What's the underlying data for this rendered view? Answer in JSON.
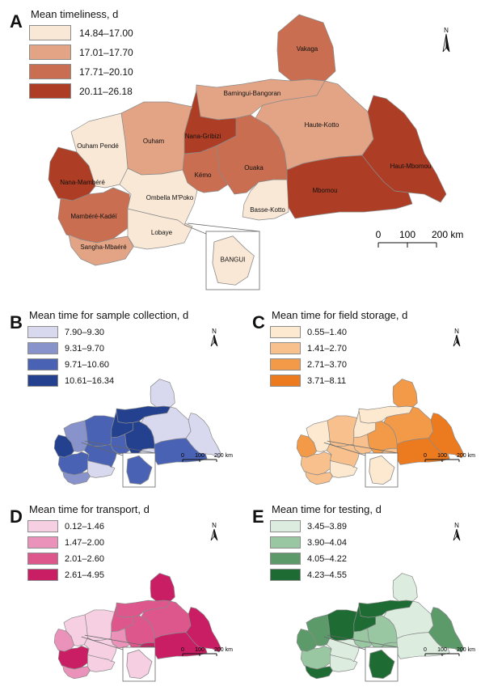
{
  "north_label": "N",
  "scale": {
    "ticks": [
      "0",
      "100",
      "200 km"
    ]
  },
  "inset_label": "BANGUI",
  "panels": [
    {
      "letter": "A",
      "title": "Mean timeliness, d",
      "legend": [
        {
          "label": "14.84–17.00",
          "color": "#fae8d6"
        },
        {
          "label": "17.01–17.70",
          "color": "#e3a486"
        },
        {
          "label": "17.71–20.10",
          "color": "#c96e50"
        },
        {
          "label": "20.11–26.18",
          "color": "#ad3d24"
        }
      ],
      "bangui_class": 0,
      "regions": {
        "vakaga": 2,
        "bamingui": 1,
        "haute_kotto": 1,
        "haut_mbomou": 3,
        "mbomou": 3,
        "basse_kotto": 0,
        "ouaka": 2,
        "kemo": 2,
        "nana_gribizi": 3,
        "ouham": 1,
        "ouham_pende": 0,
        "nana_mambere": 3,
        "mambere_kadei": 2,
        "sangha": 1,
        "lobaye": 0,
        "ombella": 0
      },
      "region_names": {
        "vakaga": "Vakaga",
        "bamingui": "Bamingui-Bangoran",
        "haute_kotto": "Haute-Kotto",
        "haut_mbomou": "Haut-Mbomou",
        "mbomou": "Mbomou",
        "basse_kotto": "Basse-Kotto",
        "ouaka": "Ouaka",
        "kemo": "Kémo",
        "nana_gribizi": "Nana-Gribizi",
        "ouham": "Ouham",
        "ouham_pende": "Ouham Pendé",
        "nana_mambere": "Nana-Mambéré",
        "mambere_kadei": "Mambéré-Kadéï",
        "sangha": "Sangha-Mbaéré",
        "lobaye": "Lobaye",
        "ombella": "Ombella M'Poko"
      }
    },
    {
      "letter": "B",
      "title": "Mean time for sample collection, d",
      "legend": [
        {
          "label": "7.90–9.30",
          "color": "#d8d9ee"
        },
        {
          "label": "9.31–9.70",
          "color": "#8893cc"
        },
        {
          "label": "9.71–10.60",
          "color": "#4a62b3"
        },
        {
          "label": "10.61–16.34",
          "color": "#23418f"
        }
      ],
      "bangui_class": 2,
      "regions": {
        "vakaga": 0,
        "bamingui": 3,
        "haute_kotto": 0,
        "haut_mbomou": 0,
        "mbomou": 2,
        "basse_kotto": 0,
        "ouaka": 3,
        "kemo": 2,
        "nana_gribizi": 3,
        "ouham": 2,
        "ouham_pende": 1,
        "nana_mambere": 3,
        "mambere_kadei": 2,
        "sangha": 1,
        "lobaye": 0,
        "ombella": 2
      }
    },
    {
      "letter": "C",
      "title": "Mean time for field storage, d",
      "legend": [
        {
          "label": "0.55–1.40",
          "color": "#fde9cf"
        },
        {
          "label": "1.41–2.70",
          "color": "#f7c08c"
        },
        {
          "label": "2.71–3.70",
          "color": "#f29a48"
        },
        {
          "label": "3.71–8.11",
          "color": "#ec7a1f"
        }
      ],
      "bangui_class": 0,
      "regions": {
        "vakaga": 2,
        "bamingui": 0,
        "haute_kotto": 2,
        "haut_mbomou": 3,
        "mbomou": 3,
        "basse_kotto": 1,
        "ouaka": 2,
        "kemo": 1,
        "nana_gribizi": 0,
        "ouham": 1,
        "ouham_pende": 0,
        "nana_mambere": 2,
        "mambere_kadei": 1,
        "sangha": 1,
        "lobaye": 0,
        "ombella": 1
      }
    },
    {
      "letter": "D",
      "title": "Mean time for transport, d",
      "legend": [
        {
          "label": "0.12–1.46",
          "color": "#f7cfe3"
        },
        {
          "label": "1.47–2.00",
          "color": "#ea92b9"
        },
        {
          "label": "2.01–2.60",
          "color": "#dd578d"
        },
        {
          "label": "2.61–4.95",
          "color": "#c91d64"
        }
      ],
      "bangui_class": 0,
      "regions": {
        "vakaga": 3,
        "bamingui": 2,
        "haute_kotto": 2,
        "haut_mbomou": 3,
        "mbomou": 3,
        "basse_kotto": 3,
        "ouaka": 2,
        "kemo": 1,
        "nana_gribizi": 2,
        "ouham": 0,
        "ouham_pende": 0,
        "nana_mambere": 1,
        "mambere_kadei": 3,
        "sangha": 1,
        "lobaye": 0,
        "ombella": 0
      }
    },
    {
      "letter": "E",
      "title": "Mean time for testing, d",
      "legend": [
        {
          "label": "3.45–3.89",
          "color": "#dcede0"
        },
        {
          "label": "3.90–4.04",
          "color": "#98c7a2"
        },
        {
          "label": "4.05–4.22",
          "color": "#5c9a69"
        },
        {
          "label": "4.23–4.55",
          "color": "#1e6b33"
        }
      ],
      "bangui_class": 3,
      "regions": {
        "vakaga": 0,
        "bamingui": 3,
        "haute_kotto": 0,
        "haut_mbomou": 2,
        "mbomou": 0,
        "basse_kotto": 1,
        "ouaka": 1,
        "kemo": 1,
        "nana_gribizi": 3,
        "ouham": 3,
        "ouham_pende": 2,
        "nana_mambere": 2,
        "mambere_kadei": 1,
        "sangha": 3,
        "lobaye": 0,
        "ombella": 0
      }
    }
  ]
}
